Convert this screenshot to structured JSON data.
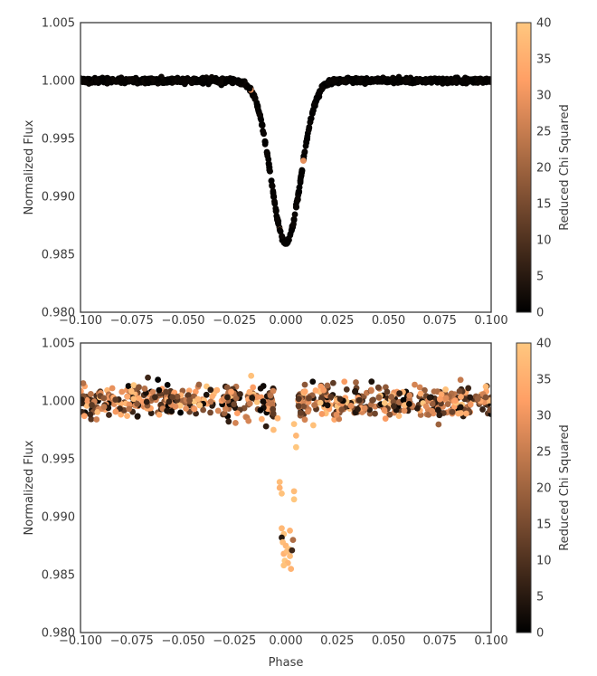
{
  "chart_data": [
    {
      "type": "scatter",
      "title": "",
      "xlabel": "",
      "ylabel": "Normalized Flux",
      "xlim": [
        -0.1,
        0.1
      ],
      "ylim": [
        0.98,
        1.005
      ],
      "xticks": [
        -0.1,
        -0.075,
        -0.05,
        -0.025,
        0.0,
        0.025,
        0.05,
        0.075,
        0.1
      ],
      "xtick_labels": [
        "−0.100",
        "−0.075",
        "−0.050",
        "−0.025",
        "0.000",
        "0.025",
        "0.050",
        "0.075",
        "0.100"
      ],
      "yticks": [
        0.98,
        0.985,
        0.99,
        0.995,
        1.0,
        1.005
      ],
      "ytick_labels": [
        "0.980",
        "0.985",
        "0.990",
        "0.995",
        "1.000",
        "1.005"
      ],
      "grid": false,
      "transit": {
        "center": 0.0,
        "depth": 0.014,
        "sigma": 0.0072
      },
      "scatter_sigma": 0.0001,
      "dominant_color_value": 0,
      "colorbar": {
        "label": "Reduced Chi Squared",
        "range": [
          0,
          40
        ],
        "ticks": [
          0,
          5,
          10,
          15,
          20,
          25,
          30,
          35,
          40
        ],
        "tick_labels": [
          "0",
          "5",
          "10",
          "15",
          "20",
          "25",
          "30",
          "35",
          "40"
        ],
        "colormap": "copper"
      }
    },
    {
      "type": "scatter",
      "title": "",
      "xlabel": "Phase",
      "ylabel": "Normalized Flux",
      "xlim": [
        -0.1,
        0.1
      ],
      "ylim": [
        0.98,
        1.005
      ],
      "xticks": [
        -0.1,
        -0.075,
        -0.05,
        -0.025,
        0.0,
        0.025,
        0.05,
        0.075,
        0.1
      ],
      "xtick_labels": [
        "−0.100",
        "−0.075",
        "−0.050",
        "−0.025",
        "0.000",
        "0.025",
        "0.050",
        "0.075",
        "0.100"
      ],
      "yticks": [
        0.98,
        0.985,
        0.99,
        0.995,
        1.0,
        1.005
      ],
      "ytick_labels": [
        "0.980",
        "0.985",
        "0.990",
        "0.995",
        "1.000",
        "1.005"
      ],
      "grid": false,
      "out_of_transit_flux": 1.0,
      "out_of_transit_scatter": 0.0007,
      "in_transit_points": [
        {
          "x": -0.006,
          "y": 0.9975
        },
        {
          "x": -0.004,
          "y": 0.9985
        },
        {
          "x": 0.004,
          "y": 0.998
        },
        {
          "x": 0.005,
          "y": 0.996
        },
        {
          "x": 0.005,
          "y": 0.997
        },
        {
          "x": -0.003,
          "y": 0.993
        },
        {
          "x": -0.003,
          "y": 0.9925
        },
        {
          "x": -0.002,
          "y": 0.992
        },
        {
          "x": 0.004,
          "y": 0.9922
        },
        {
          "x": 0.004,
          "y": 0.9915
        },
        {
          "x": -0.002,
          "y": 0.989
        },
        {
          "x": -0.001,
          "y": 0.9885
        },
        {
          "x": 0.002,
          "y": 0.9888
        },
        {
          "x": -0.002,
          "y": 0.9882
        },
        {
          "x": 0.0035,
          "y": 0.988
        },
        {
          "x": -0.0015,
          "y": 0.9878
        },
        {
          "x": 0.0,
          "y": 0.9875
        },
        {
          "x": 0.0015,
          "y": 0.9872
        },
        {
          "x": -0.001,
          "y": 0.9868
        },
        {
          "x": 0.002,
          "y": 0.9866
        },
        {
          "x": -0.0005,
          "y": 0.9862
        },
        {
          "x": 0.001,
          "y": 0.986
        },
        {
          "x": 0.0025,
          "y": 0.9855
        },
        {
          "x": -0.001,
          "y": 0.9858
        },
        {
          "x": 0.0005,
          "y": 0.987
        },
        {
          "x": 0.003,
          "y": 0.9871
        }
      ],
      "in_transit_colors": [
        38,
        36,
        39,
        40,
        37,
        38,
        36,
        39,
        38,
        40,
        37,
        39,
        36,
        5,
        22,
        38,
        37,
        39,
        36,
        38,
        40,
        37,
        36,
        39,
        38,
        8
      ],
      "colorbar": {
        "label": "Reduced Chi Squared",
        "range": [
          0,
          40
        ],
        "ticks": [
          0,
          5,
          10,
          15,
          20,
          25,
          30,
          35,
          40
        ],
        "tick_labels": [
          "0",
          "5",
          "10",
          "15",
          "20",
          "25",
          "30",
          "35",
          "40"
        ],
        "colormap": "copper"
      }
    }
  ]
}
